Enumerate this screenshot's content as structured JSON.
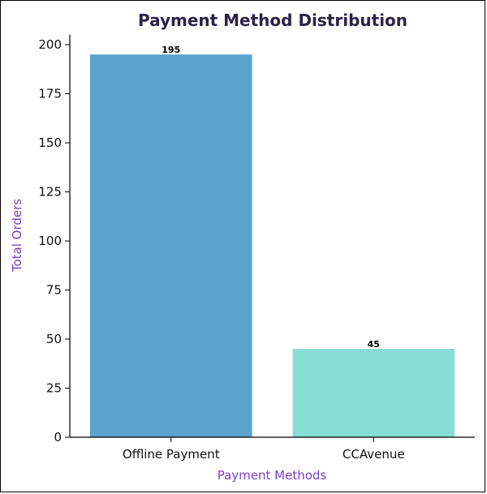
{
  "chart_data": {
    "type": "bar",
    "title": "Payment Method Distribution",
    "xlabel": "Payment Methods",
    "ylabel": "Total Orders",
    "categories": [
      "Offline Payment",
      "CCAvenue"
    ],
    "values": [
      195,
      45
    ],
    "value_labels": [
      "195",
      "45"
    ],
    "bar_colors": [
      "#5ba3cf",
      "#85ded3"
    ],
    "ylim": [
      0,
      205
    ],
    "yticks": [
      0,
      25,
      50,
      75,
      100,
      125,
      150,
      175,
      200
    ],
    "grid": false,
    "legend": "none"
  },
  "colors": {
    "title": "#2b2346",
    "axis_label": "#7b3fc4"
  }
}
